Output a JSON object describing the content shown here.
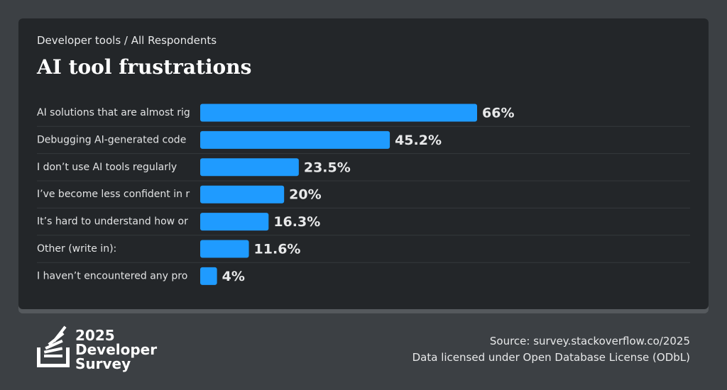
{
  "chart_data": {
    "type": "bar",
    "subtitle": "Developer tools / All Respondents",
    "title": "AI tool frustrations",
    "categories": [
      "AI solutions that are almost rig",
      "Debugging AI-generated code",
      "I don’t use AI tools regularly",
      "I’ve become less confident in r",
      "It’s hard to understand how or",
      "Other (write in):",
      "I haven’t encountered any pro"
    ],
    "values": [
      66,
      45.2,
      23.5,
      20,
      16.3,
      11.6,
      4
    ],
    "value_labels": [
      "66%",
      "45.2%",
      "23.5%",
      "20%",
      "16.3%",
      "11.6%",
      "4%"
    ],
    "color": "#1f9bff",
    "logo_text": [
      "2025",
      "Developer",
      "Survey"
    ],
    "source": "Source: survey.stackoverflow.co/2025",
    "license": "Data licensed under Open Database License (ODbL)"
  }
}
